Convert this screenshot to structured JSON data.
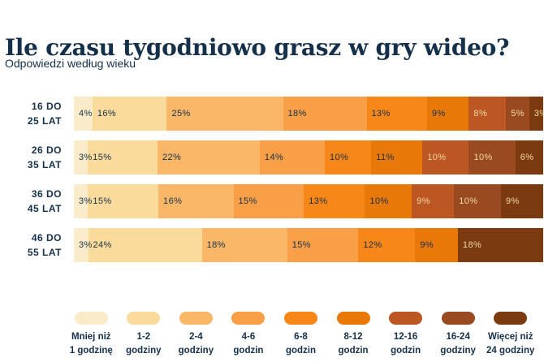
{
  "page": {
    "title": "Ile czasu tygodniowo grasz w gry wideo?",
    "subtitle": "Odpowiedzi według wieku"
  },
  "colors": {
    "background": "#FFFFFF",
    "text_navy": "#14304A",
    "segment_light_text": "#F0DAA6"
  },
  "chart_data": {
    "type": "bar",
    "variant": "stacked-horizontal-percent",
    "orientation": "horizontal",
    "unit": "%",
    "title": "Ile czasu tygodniowo grasz w gry wideo?",
    "subtitle": "Odpowiedzi według wieku",
    "legend_position": "bottom",
    "grid": false,
    "categories": [
      "16 DO 25 LAT",
      "26 DO 35 LAT",
      "36 DO 45 LAT",
      "46 DO 55 LAT"
    ],
    "category_label_lines": [
      [
        "16 DO",
        "25 LAT"
      ],
      [
        "26 DO",
        "35 LAT"
      ],
      [
        "36 DO",
        "45 LAT"
      ],
      [
        "46 DO",
        "55 LAT"
      ]
    ],
    "palette": [
      "#FAEBCB",
      "#FBDB9B",
      "#FBB768",
      "#F99F47",
      "#F8871A",
      "#E87909",
      "#BC5622",
      "#9A4A20",
      "#7C3A10"
    ],
    "light_text_from_series_index": 6,
    "series": [
      {
        "name": "Mniej niż 1 godzinę",
        "label_lines": [
          "Mniej niż",
          "1 godzinę"
        ],
        "color": "#FAEBCB",
        "values": [
          4,
          3,
          3,
          3
        ]
      },
      {
        "name": "1-2 godziny",
        "label_lines": [
          "1-2",
          "godziny"
        ],
        "color": "#FBDB9B",
        "values": [
          16,
          15,
          15,
          24
        ]
      },
      {
        "name": "2-4 godziny",
        "label_lines": [
          "2-4",
          "godziny"
        ],
        "color": "#FBB768",
        "values": [
          25,
          22,
          16,
          18
        ]
      },
      {
        "name": "4-6 godzin",
        "label_lines": [
          "4-6",
          "godzin"
        ],
        "color": "#F99F47",
        "values": [
          18,
          14,
          15,
          15
        ]
      },
      {
        "name": "6-8 godzin",
        "label_lines": [
          "6-8",
          "godzin"
        ],
        "color": "#F8871A",
        "values": [
          13,
          10,
          13,
          12
        ]
      },
      {
        "name": "8-12 godzin",
        "label_lines": [
          "8-12",
          "godzin"
        ],
        "color": "#E87909",
        "values": [
          9,
          11,
          10,
          9
        ]
      },
      {
        "name": "12-16 godzin",
        "label_lines": [
          "12-16",
          "godzin"
        ],
        "color": "#BC5622",
        "values": [
          8,
          10,
          9,
          0
        ]
      },
      {
        "name": "16-24 godziny",
        "label_lines": [
          "16-24",
          "godziny"
        ],
        "color": "#9A4A20",
        "values": [
          5,
          10,
          10,
          0
        ]
      },
      {
        "name": "Więcej niż 24 godziny",
        "label_lines": [
          "Więcej niż",
          "24 godziny"
        ],
        "color": "#7C3A10",
        "values": [
          3,
          6,
          9,
          18
        ]
      }
    ]
  }
}
